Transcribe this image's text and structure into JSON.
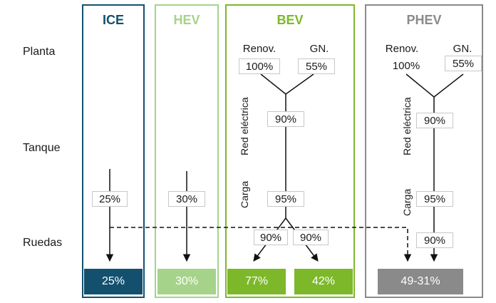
{
  "rows": {
    "planta": "Planta",
    "tanque": "Tanque",
    "ruedas": "Ruedas"
  },
  "columns": {
    "ice": {
      "title": "ICE",
      "color": "#13506e",
      "efficiency": "25%",
      "result": "25%"
    },
    "hev": {
      "title": "HEV",
      "color": "#a6d38a",
      "efficiency": "30%",
      "result": "30%"
    },
    "bev": {
      "title": "BEV",
      "color": "#7db82b",
      "renov_label": "Renov.",
      "gn_label": "GN.",
      "renov_pct": "100%",
      "gn_pct": "55%",
      "grid_label": "Red eléctrica",
      "grid_pct": "90%",
      "charge_label": "Carga",
      "charge_pct": "95%",
      "split_left_pct": "90%",
      "split_right_pct": "90%",
      "result_left": "77%",
      "result_right": "42%"
    },
    "phev": {
      "title": "PHEV",
      "color": "#8a8a8a",
      "renov_label": "Renov.",
      "gn_label": "GN.",
      "renov_pct": "100%",
      "gn_pct": "55%",
      "grid_label": "Red eléctrica",
      "grid_pct": "90%",
      "charge_label": "Carga",
      "charge_pct": "95%",
      "final_pct": "90%",
      "result": "49-31%"
    }
  }
}
